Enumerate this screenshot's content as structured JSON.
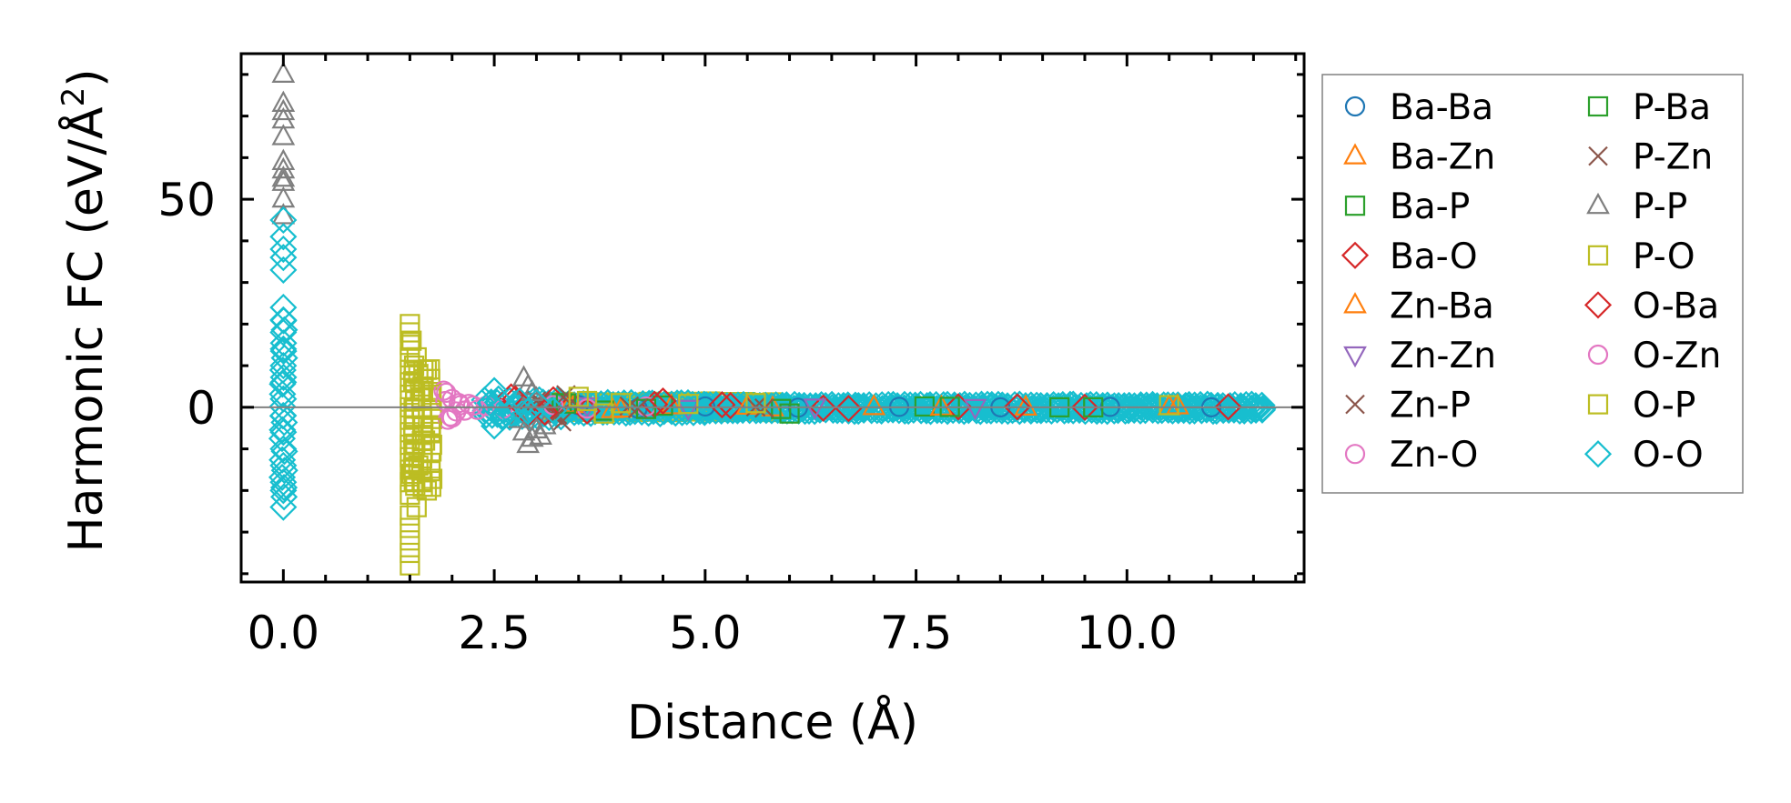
{
  "chart_data": {
    "type": "scatter",
    "title": "",
    "xlabel": "Distance (Å)",
    "ylabel_main": "Harmonic FC (eV/Å",
    "ylabel_sup": "2",
    "ylabel_close": ")",
    "xlim": [
      -0.5,
      12.1
    ],
    "ylim": [
      -42,
      85
    ],
    "xticks": [
      0.0,
      2.5,
      5.0,
      7.5,
      10.0
    ],
    "xtick_labels": [
      "0.0",
      "2.5",
      "5.0",
      "7.5",
      "10.0"
    ],
    "xminor": [
      -0.5,
      0.5,
      1.0,
      1.5,
      2.0,
      3.0,
      3.5,
      4.0,
      4.5,
      5.5,
      6.0,
      6.5,
      7.0,
      8.0,
      8.5,
      9.0,
      9.5,
      10.5,
      11.0,
      11.5,
      12.0
    ],
    "yticks": [
      0,
      50
    ],
    "ytick_labels": [
      "0",
      "50"
    ],
    "yminor": [
      -40,
      -30,
      -20,
      -10,
      10,
      20,
      30,
      40,
      60,
      70,
      80
    ],
    "zero_line": true,
    "legend_position": "outside-right",
    "series": [
      {
        "name": "Ba-Ba",
        "marker": "circle",
        "color": "#1f77b4",
        "points": [
          [
            3.5,
            0.5
          ],
          [
            4.2,
            -0.3
          ],
          [
            5.0,
            0.2
          ],
          [
            6.1,
            -0.1
          ],
          [
            7.3,
            0.1
          ],
          [
            8.5,
            0.0
          ],
          [
            9.8,
            0.1
          ],
          [
            11.0,
            0.0
          ]
        ]
      },
      {
        "name": "Ba-Zn",
        "marker": "triangle-up",
        "color": "#ff7f0e",
        "points": [
          [
            3.4,
            0.8
          ],
          [
            3.9,
            -0.6
          ],
          [
            4.6,
            0.3
          ],
          [
            5.8,
            -0.2
          ],
          [
            7.0,
            0.1
          ],
          [
            8.8,
            0.0
          ],
          [
            10.5,
            0.1
          ]
        ]
      },
      {
        "name": "Ba-P",
        "marker": "square",
        "color": "#2ca02c",
        "points": [
          [
            3.3,
            1.0
          ],
          [
            3.8,
            -0.8
          ],
          [
            4.5,
            0.4
          ],
          [
            5.9,
            -0.4
          ],
          [
            7.6,
            0.2
          ],
          [
            9.2,
            0.0
          ]
        ]
      },
      {
        "name": "Ba-O",
        "marker": "diamond",
        "color": "#d62728",
        "points": [
          [
            2.7,
            2.5
          ],
          [
            2.9,
            -1.5
          ],
          [
            3.2,
            1.8
          ],
          [
            3.6,
            -0.9
          ],
          [
            4.4,
            0.7
          ],
          [
            5.3,
            0.4
          ],
          [
            6.4,
            -0.2
          ],
          [
            8.0,
            0.1
          ],
          [
            9.5,
            0.0
          ],
          [
            11.2,
            0.1
          ]
        ]
      },
      {
        "name": "Zn-Ba",
        "marker": "triangle-up",
        "color": "#ff7f0e",
        "points": [
          [
            3.45,
            0.6
          ],
          [
            4.0,
            -0.5
          ],
          [
            5.5,
            0.2
          ],
          [
            7.8,
            0.0
          ],
          [
            10.6,
            0.3
          ]
        ]
      },
      {
        "name": "Zn-Zn",
        "marker": "triangle-down",
        "color": "#9467bd",
        "points": [
          [
            3.6,
            0.4
          ],
          [
            4.8,
            -0.2
          ],
          [
            6.3,
            0.1
          ],
          [
            8.2,
            0.0
          ]
        ]
      },
      {
        "name": "Zn-P",
        "marker": "x",
        "color": "#8c564b",
        "points": [
          [
            3.0,
            1.5
          ],
          [
            3.2,
            -2.0
          ],
          [
            3.4,
            0.9
          ],
          [
            3.3,
            -3.5
          ],
          [
            4.1,
            0.3
          ],
          [
            5.7,
            -0.2
          ]
        ]
      },
      {
        "name": "Zn-O",
        "marker": "circle",
        "color": "#e377c2",
        "points": [
          [
            1.9,
            4.0
          ],
          [
            1.95,
            -3.0
          ],
          [
            2.0,
            2.0
          ],
          [
            2.05,
            -1.0
          ],
          [
            2.1,
            0.5
          ],
          [
            1.92,
            1.5
          ],
          [
            1.98,
            -2.2
          ],
          [
            2.2,
            0.8
          ],
          [
            2.3,
            -0.6
          ],
          [
            2.4,
            0.3
          ],
          [
            2.6,
            -0.4
          ],
          [
            3.2,
            0.5
          ],
          [
            3.6,
            -0.3
          ],
          [
            4.3,
            0.2
          ]
        ]
      },
      {
        "name": "P-Ba",
        "marker": "square",
        "color": "#2ca02c",
        "points": [
          [
            3.35,
            0.9
          ],
          [
            4.3,
            -0.4
          ],
          [
            6.0,
            -1.5
          ],
          [
            7.9,
            0.1
          ],
          [
            9.6,
            0.0
          ]
        ]
      },
      {
        "name": "P-Zn",
        "marker": "x",
        "color": "#8c564b",
        "points": [
          [
            3.05,
            1.2
          ],
          [
            3.25,
            -1.8
          ],
          [
            3.35,
            3.0
          ],
          [
            4.2,
            -0.3
          ],
          [
            5.6,
            0.1
          ]
        ]
      },
      {
        "name": "P-P",
        "marker": "triangle-up",
        "color": "#7f7f7f",
        "points": [
          [
            0.0,
            80
          ],
          [
            0.0,
            73
          ],
          [
            0.0,
            71
          ],
          [
            0.0,
            69
          ],
          [
            0.0,
            65
          ],
          [
            0.0,
            59
          ],
          [
            0.0,
            57
          ],
          [
            0.0,
            55
          ],
          [
            0.0,
            54
          ],
          [
            0.0,
            50
          ],
          [
            0.0,
            46
          ],
          [
            2.85,
            7.0
          ],
          [
            2.9,
            5.0
          ],
          [
            2.95,
            3.5
          ],
          [
            2.85,
            -6.0
          ],
          [
            2.9,
            -9.0
          ],
          [
            2.95,
            -7.5
          ],
          [
            3.0,
            -5.5
          ],
          [
            3.05,
            -7.0
          ],
          [
            3.1,
            -4.5
          ],
          [
            2.8,
            -3.0
          ],
          [
            3.0,
            2.0
          ]
        ]
      },
      {
        "name": "P-O",
        "marker": "square",
        "color": "#bcbd22",
        "points": [
          [
            1.5,
            20
          ],
          [
            1.5,
            18
          ],
          [
            1.5,
            15
          ],
          [
            1.5,
            12
          ],
          [
            1.5,
            9
          ],
          [
            1.5,
            6
          ],
          [
            1.5,
            3
          ],
          [
            1.5,
            0
          ],
          [
            1.5,
            -3
          ],
          [
            1.5,
            -6
          ],
          [
            1.5,
            -9
          ],
          [
            1.5,
            -12
          ],
          [
            1.5,
            -15
          ],
          [
            1.5,
            -18
          ],
          [
            1.5,
            -21
          ],
          [
            1.5,
            -26
          ],
          [
            1.5,
            -29
          ],
          [
            1.5,
            -32
          ],
          [
            1.5,
            -35
          ],
          [
            1.5,
            -38
          ],
          [
            1.55,
            10
          ],
          [
            1.55,
            -10
          ],
          [
            1.6,
            8
          ],
          [
            1.6,
            -14
          ],
          [
            1.65,
            5
          ],
          [
            1.65,
            -18
          ],
          [
            1.7,
            9
          ],
          [
            1.7,
            -20
          ],
          [
            1.75,
            3
          ],
          [
            1.75,
            -5
          ],
          [
            3.5,
            2.5
          ],
          [
            3.8,
            -1.5
          ],
          [
            4.0,
            1.0
          ],
          [
            5.6,
            1.0
          ],
          [
            10.5,
            0.5
          ]
        ]
      },
      {
        "name": "O-Ba",
        "marker": "diamond",
        "color": "#d62728",
        "points": [
          [
            2.75,
            2.0
          ],
          [
            3.1,
            -1.2
          ],
          [
            4.5,
            1.5
          ],
          [
            5.2,
            0.6
          ],
          [
            6.7,
            -0.3
          ],
          [
            8.7,
            0.1
          ]
        ]
      },
      {
        "name": "O-Zn",
        "marker": "circle",
        "color": "#e377c2",
        "points": [
          [
            1.93,
            3.5
          ],
          [
            2.0,
            -2.5
          ],
          [
            2.08,
            1.0
          ],
          [
            2.15,
            -0.8
          ],
          [
            2.25,
            0.4
          ]
        ]
      },
      {
        "name": "O-P",
        "marker": "square",
        "color": "#bcbd22",
        "points": [
          [
            1.52,
            16
          ],
          [
            1.52,
            -16
          ],
          [
            1.58,
            12
          ],
          [
            1.58,
            -24
          ],
          [
            1.62,
            4
          ],
          [
            1.68,
            -8
          ],
          [
            3.6,
            1.5
          ],
          [
            4.8,
            0.8
          ]
        ]
      },
      {
        "name": "O-O",
        "marker": "diamond",
        "color": "#17becf",
        "points": [
          [
            0.0,
            45
          ],
          [
            0.0,
            41
          ],
          [
            0.0,
            38
          ],
          [
            0.0,
            36
          ],
          [
            0.0,
            33
          ],
          [
            0.0,
            24
          ],
          [
            0.0,
            21
          ],
          [
            0.0,
            18
          ],
          [
            0.0,
            14
          ],
          [
            0.0,
            10
          ],
          [
            0.0,
            6
          ],
          [
            0.0,
            2
          ],
          [
            0.0,
            -2
          ],
          [
            0.0,
            -6
          ],
          [
            0.0,
            -10
          ],
          [
            0.0,
            -14
          ],
          [
            0.0,
            -18
          ],
          [
            0.0,
            -20
          ],
          [
            0.0,
            -24
          ],
          [
            2.5,
            4.0
          ],
          [
            2.5,
            -4.5
          ],
          [
            2.55,
            2.0
          ],
          [
            2.6,
            -2.5
          ],
          [
            2.45,
            1.0
          ],
          [
            2.7,
            -1.5
          ],
          [
            2.8,
            1.5
          ],
          [
            2.9,
            -1.0
          ],
          [
            3.0,
            1.2
          ],
          [
            3.2,
            -0.8
          ]
        ]
      }
    ],
    "bands": [
      {
        "name": "P-O",
        "color": "#bcbd22",
        "x_start": 1.55,
        "x_end": 1.75,
        "y_min": -20,
        "y_max": 10
      },
      {
        "name": "P-O",
        "color": "#bcbd22",
        "x_start": 3.2,
        "x_end": 5.8,
        "y_min": -1.2,
        "y_max": 1.8
      },
      {
        "name": "O-O",
        "color": "#17becf",
        "x_start": 0.0,
        "x_end": 0.0,
        "y_min": -22,
        "y_max": 22
      },
      {
        "name": "O-O",
        "color": "#17becf",
        "x_start": 2.4,
        "x_end": 3.3,
        "y_min": -2.5,
        "y_max": 2.5
      },
      {
        "name": "O-O",
        "color": "#17becf",
        "x_start": 3.3,
        "x_end": 5.0,
        "y_min": -1.6,
        "y_max": 1.6
      },
      {
        "name": "O-O",
        "color": "#17becf",
        "x_start": 5.0,
        "x_end": 11.6,
        "y_min": -1.0,
        "y_max": 1.0
      }
    ],
    "legend": [
      {
        "label": "Ba-Ba",
        "marker": "circle",
        "color": "#1f77b4"
      },
      {
        "label": "Ba-Zn",
        "marker": "triangle-up",
        "color": "#ff7f0e"
      },
      {
        "label": "Ba-P",
        "marker": "square",
        "color": "#2ca02c"
      },
      {
        "label": "Ba-O",
        "marker": "diamond",
        "color": "#d62728"
      },
      {
        "label": "Zn-Ba",
        "marker": "triangle-up",
        "color": "#ff7f0e"
      },
      {
        "label": "Zn-Zn",
        "marker": "triangle-down",
        "color": "#9467bd"
      },
      {
        "label": "Zn-P",
        "marker": "x",
        "color": "#8c564b"
      },
      {
        "label": "Zn-O",
        "marker": "circle",
        "color": "#e377c2"
      },
      {
        "label": "P-Ba",
        "marker": "square",
        "color": "#2ca02c"
      },
      {
        "label": "P-Zn",
        "marker": "x",
        "color": "#8c564b"
      },
      {
        "label": "P-P",
        "marker": "triangle-up",
        "color": "#7f7f7f"
      },
      {
        "label": "P-O",
        "marker": "square",
        "color": "#bcbd22"
      },
      {
        "label": "O-Ba",
        "marker": "diamond",
        "color": "#d62728"
      },
      {
        "label": "O-Zn",
        "marker": "circle",
        "color": "#e377c2"
      },
      {
        "label": "O-P",
        "marker": "square",
        "color": "#bcbd22"
      },
      {
        "label": "O-O",
        "marker": "diamond",
        "color": "#17becf"
      }
    ]
  }
}
